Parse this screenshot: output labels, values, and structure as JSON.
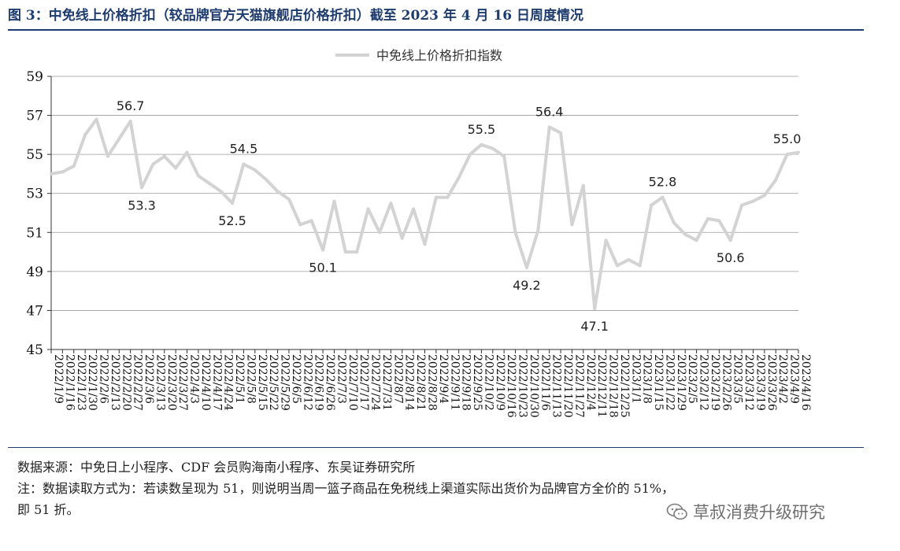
{
  "figure": {
    "title": "图 3：中免线上价格折扣（较品牌官方天猫旗舰店价格折扣）截至 2023 年 4 月 16 日周度情况",
    "source_note": "数据来源：中免日上小程序、CDF 会员购海南小程序、东吴证券研究所",
    "note_line1": "注：数据读取方式为：若读数呈现为 51，则说明当周一篮子商品在免税线上渠道实际出货价为品牌官方全价的 51%，",
    "note_line2": "即 51 折。",
    "watermark": "草叔消费升级研究",
    "watermark_icon": "wechat-icon"
  },
  "chart_data": {
    "type": "line",
    "title": "",
    "xlabel": "",
    "ylabel": "",
    "ylim": [
      45,
      59
    ],
    "yticks": [
      45,
      47,
      49,
      51,
      53,
      55,
      57,
      59
    ],
    "grid": "horizontal",
    "legend": {
      "position": "top-center"
    },
    "x": [
      "2022/1/9",
      "2022/1/16",
      "2022/1/23",
      "2022/1/30",
      "2022/2/6",
      "2022/2/13",
      "2022/2/20",
      "2022/2/27",
      "2022/3/6",
      "2022/3/13",
      "2022/3/20",
      "2022/3/27",
      "2022/4/3",
      "2022/4/10",
      "2022/4/17",
      "2022/4/24",
      "2022/5/1",
      "2022/5/8",
      "2022/5/15",
      "2022/5/22",
      "2022/5/29",
      "2022/6/5",
      "2022/6/12",
      "2022/6/19",
      "2022/6/26",
      "2022/7/3",
      "2022/7/10",
      "2022/7/17",
      "2022/7/24",
      "2022/7/31",
      "2022/8/7",
      "2022/8/14",
      "2022/8/21",
      "2022/8/28",
      "2022/9/4",
      "2022/9/11",
      "2022/9/18",
      "2022/9/25",
      "2022/10/2",
      "2022/10/9",
      "2022/10/16",
      "2022/10/23",
      "2022/10/30",
      "2022/11/6",
      "2022/11/13",
      "2022/11/20",
      "2022/11/27",
      "2022/12/4",
      "2022/12/11",
      "2022/12/18",
      "2022/12/25",
      "2023/1/1",
      "2023/1/8",
      "2023/1/15",
      "2023/1/22",
      "2023/1/29",
      "2023/2/5",
      "2023/2/12",
      "2023/2/19",
      "2023/2/26",
      "2023/3/5",
      "2023/3/12",
      "2023/3/19",
      "2023/3/26",
      "2023/4/2",
      "2023/4/9",
      "2023/4/16"
    ],
    "x_tick_labels": [
      "2022/1/9",
      "2022/1/16",
      "2022/1/23",
      "2022/1/30",
      "2022/2/6",
      "2022/2/13",
      "2022/2/20",
      "2022/2/27",
      "2022/3/6",
      "2022/3/13",
      "2022/3/20",
      "2022/3/27",
      "2022/4/3",
      "2022/4/10",
      "2022/4/17",
      "2022/4/24",
      "2022/5/1",
      "2022/5/8",
      "2022/5/15",
      "2022/5/22",
      "2022/5/29",
      "2022/6/5",
      "2022/6/12",
      "2022/6/19",
      "2022/6/26",
      "2022/7/3",
      "2022/7/10",
      "2022/7/17",
      "2022/7/24",
      "2022/7/31",
      "2022/8/7",
      "2022/8/14",
      "2022/8/21",
      "2022/8/28",
      "2022/9/4",
      "2022/9/11",
      "2022/9/18",
      "2022/9/25",
      "2022/10/2",
      "2022/10/9",
      "2022/10/16",
      "2022/10/23",
      "2022/10/30",
      "2022/11/6",
      "2022/11/13",
      "2022/11/20",
      "2022/11/27",
      "2022/12/4",
      "2022/12/11",
      "2022/12/18",
      "2022/12/25",
      "2023/1/1",
      "2023/1/8",
      "2023/1/15",
      "2023/1/22",
      "2023/1/29",
      "2023/2/5",
      "2023/2/12",
      "2023/2/19",
      "2023/2/26",
      "2023/3/5",
      "2023/3/12",
      "2023/3/19",
      "2023/3/26",
      "2023/4/2",
      "2023/4/9",
      "2023/4/16"
    ],
    "series": [
      {
        "name": "中免线上价格折扣指数",
        "color": "#d3d3d3",
        "values": [
          54.0,
          54.1,
          54.4,
          56.0,
          56.8,
          54.9,
          55.8,
          56.7,
          53.3,
          54.5,
          54.9,
          54.3,
          55.1,
          53.9,
          53.5,
          53.1,
          52.5,
          54.5,
          54.2,
          53.7,
          53.1,
          52.7,
          51.4,
          51.6,
          50.1,
          52.6,
          50.0,
          50.0,
          52.2,
          51.0,
          52.5,
          50.7,
          52.2,
          50.4,
          52.8,
          52.8,
          53.8,
          55.0,
          55.5,
          55.3,
          54.9,
          51.0,
          49.2,
          51.1,
          56.4,
          56.1,
          51.4,
          53.4,
          47.1,
          50.6,
          49.3,
          49.6,
          49.3,
          52.4,
          52.8,
          51.5,
          50.9,
          50.6,
          51.7,
          51.6,
          50.6,
          52.4,
          52.6,
          52.9,
          53.7,
          55.0,
          55.1
        ]
      }
    ],
    "annotations": [
      {
        "index": 7,
        "text": "56.7",
        "position": "above"
      },
      {
        "index": 8,
        "text": "53.3",
        "position": "below"
      },
      {
        "index": 16,
        "text": "52.5",
        "position": "below"
      },
      {
        "index": 17,
        "text": "54.5",
        "position": "above"
      },
      {
        "index": 24,
        "text": "50.1",
        "position": "below"
      },
      {
        "index": 38,
        "text": "55.5",
        "position": "above"
      },
      {
        "index": 42,
        "text": "49.2",
        "position": "below"
      },
      {
        "index": 44,
        "text": "56.4",
        "position": "above"
      },
      {
        "index": 48,
        "text": "47.1",
        "position": "below"
      },
      {
        "index": 54,
        "text": "52.8",
        "position": "above"
      },
      {
        "index": 60,
        "text": "50.6",
        "position": "below"
      },
      {
        "index": 65,
        "text": "55.0",
        "position": "above"
      }
    ]
  }
}
